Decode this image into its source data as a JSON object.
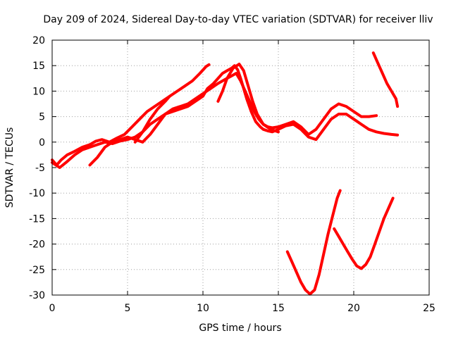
{
  "chart_data": {
    "type": "line",
    "title": "Day 209 of 2024, Sidereal Day-to-day VTEC variation (SDTVAR) for receiver lliv",
    "xlabel": "GPS time / hours",
    "ylabel": "SDTVAR / TECUs",
    "xlim": [
      0,
      25
    ],
    "ylim": [
      -30,
      20
    ],
    "xticks": [
      0,
      5,
      10,
      15,
      20,
      25
    ],
    "yticks": [
      -30,
      -25,
      -20,
      -15,
      -10,
      -5,
      0,
      5,
      10,
      15,
      20
    ],
    "grid": true,
    "legend": "none",
    "color": "#ff0000",
    "series": [
      {
        "x": [
          0.0,
          0.3,
          0.6,
          1.0,
          1.5,
          2.0,
          2.5,
          2.9,
          3.3,
          3.8,
          4.3,
          4.8,
          5.3,
          5.8,
          6.3,
          6.8,
          7.3,
          7.8,
          8.3,
          8.8,
          9.3,
          9.8,
          10.2,
          10.4
        ],
        "y": [
          -3.5,
          -4.5,
          -3.5,
          -2.5,
          -1.8,
          -1.0,
          -0.5,
          0.2,
          0.5,
          0.0,
          0.8,
          1.5,
          3.0,
          4.5,
          6.0,
          7.0,
          8.0,
          9.0,
          10.0,
          11.0,
          12.0,
          13.5,
          14.8,
          15.2
        ]
      },
      {
        "x": [
          0.0,
          0.5,
          1.0,
          1.5,
          2.0,
          2.5,
          3.0,
          3.5,
          4.0,
          4.5,
          5.0,
          5.5,
          6.0,
          6.5,
          7.0,
          7.5,
          8.0,
          8.5,
          9.0,
          9.5,
          10.0,
          10.3,
          10.7,
          11.0,
          11.3,
          11.6,
          11.9,
          12.1,
          12.3,
          12.5,
          12.7,
          12.9,
          13.2,
          13.5,
          13.8,
          14.0,
          14.3,
          14.6,
          15.0,
          15.5,
          16.0,
          16.5,
          17.0,
          17.5,
          18.0,
          18.5,
          19.0,
          19.5,
          20.0,
          20.5,
          21.0,
          21.5,
          22.0,
          22.5,
          22.9
        ],
        "y": [
          -4.0,
          -5.0,
          -3.8,
          -2.5,
          -1.5,
          -1.0,
          -0.5,
          0.0,
          -0.3,
          0.2,
          0.5,
          1.0,
          2.0,
          3.5,
          4.5,
          5.5,
          6.0,
          6.5,
          7.0,
          8.0,
          9.0,
          10.5,
          11.5,
          12.5,
          13.5,
          14.0,
          14.5,
          15.0,
          14.2,
          12.5,
          10.5,
          8.5,
          6.0,
          4.0,
          3.0,
          2.5,
          2.2,
          2.0,
          2.5,
          3.2,
          3.5,
          2.5,
          1.0,
          0.5,
          2.5,
          4.5,
          5.5,
          5.5,
          4.5,
          3.5,
          2.5,
          2.0,
          1.7,
          1.5,
          1.4
        ]
      },
      {
        "x": [
          2.5,
          3.0,
          3.5,
          4.0,
          4.5,
          5.0,
          5.5,
          6.0,
          6.5,
          7.0,
          7.5,
          8.0,
          8.5,
          9.0,
          9.5,
          10.0,
          10.5,
          11.0,
          11.3,
          11.6,
          11.9,
          12.2,
          12.5,
          12.8,
          13.1,
          13.4,
          13.7,
          14.0,
          14.3,
          14.6,
          15.0,
          15.5,
          16.0,
          16.5,
          17.0,
          17.5,
          18.0,
          18.5,
          19.0,
          19.5,
          20.0,
          20.5,
          21.0,
          21.5
        ],
        "y": [
          -4.5,
          -3.0,
          -1.0,
          0.0,
          0.5,
          1.0,
          0.5,
          0.0,
          1.5,
          3.5,
          5.5,
          6.5,
          7.0,
          7.5,
          8.5,
          9.5,
          10.5,
          11.5,
          12.0,
          12.5,
          13.0,
          13.5,
          12.0,
          10.0,
          8.0,
          6.0,
          4.5,
          3.5,
          3.0,
          2.8,
          3.0,
          3.5,
          4.0,
          3.0,
          1.5,
          2.5,
          4.5,
          6.5,
          7.5,
          7.0,
          6.0,
          5.0,
          5.0,
          5.2
        ]
      },
      {
        "x": [
          5.5,
          6.0,
          6.5,
          7.0,
          7.5,
          7.8
        ],
        "y": [
          0.0,
          2.0,
          4.5,
          6.5,
          8.0,
          9.0
        ]
      },
      {
        "x": [
          11.0,
          11.3,
          11.6,
          12.0,
          12.4,
          12.7,
          13.0,
          13.3,
          13.6,
          14.0,
          14.5,
          15.0
        ],
        "y": [
          8.0,
          10.0,
          12.5,
          14.5,
          15.3,
          14.0,
          11.0,
          8.0,
          5.5,
          3.5,
          2.5,
          2.0
        ]
      },
      {
        "x": [
          21.3,
          21.6,
          21.9,
          22.2,
          22.5,
          22.8,
          22.9
        ],
        "y": [
          17.5,
          15.5,
          13.5,
          11.5,
          10.0,
          8.5,
          7.0
        ]
      },
      {
        "x": [
          15.6,
          15.9,
          16.2,
          16.5,
          16.8,
          17.1,
          17.4,
          17.7,
          18.0,
          18.3,
          18.6,
          18.9,
          19.1
        ],
        "y": [
          -21.5,
          -23.5,
          -25.5,
          -27.5,
          -29.0,
          -29.8,
          -29.0,
          -26.0,
          -22.0,
          -18.0,
          -14.5,
          -11.0,
          -9.5
        ]
      },
      {
        "x": [
          18.7,
          19.0,
          19.3,
          19.6,
          19.9,
          20.2,
          20.5,
          20.8,
          21.1,
          21.4,
          21.7,
          22.0,
          22.3,
          22.6
        ],
        "y": [
          -17.0,
          -18.5,
          -20.0,
          -21.5,
          -23.0,
          -24.3,
          -24.8,
          -24.0,
          -22.5,
          -20.0,
          -17.5,
          -15.0,
          -13.0,
          -11.0
        ]
      }
    ]
  }
}
